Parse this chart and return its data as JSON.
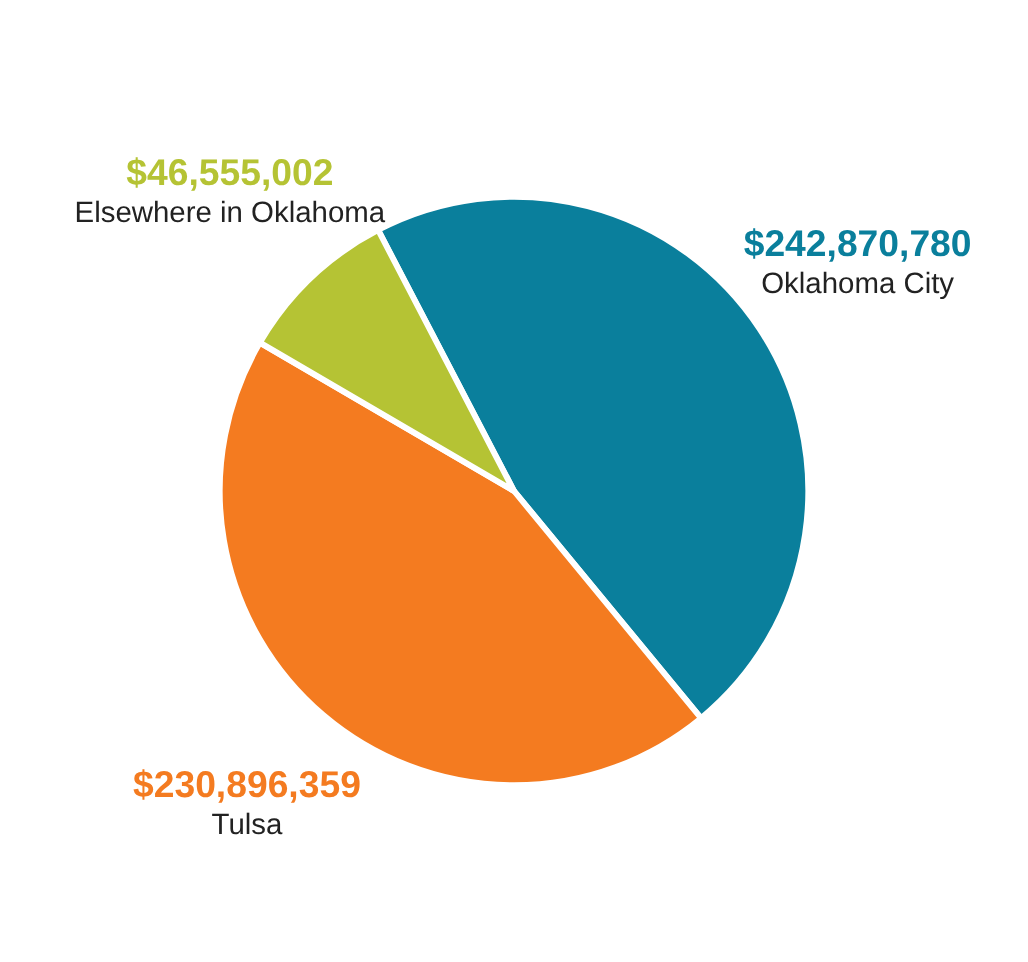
{
  "chart_data": {
    "type": "pie",
    "categories": [
      "Oklahoma City",
      "Tulsa",
      "Elsewhere in Oklahoma"
    ],
    "values": [
      242870780,
      230896359,
      46555002
    ],
    "colors": [
      "#0a7f9c",
      "#f47b20",
      "#b5c334"
    ],
    "value_labels": [
      "$242,870,780",
      "$230,896,359",
      "$46,555,002"
    ]
  }
}
